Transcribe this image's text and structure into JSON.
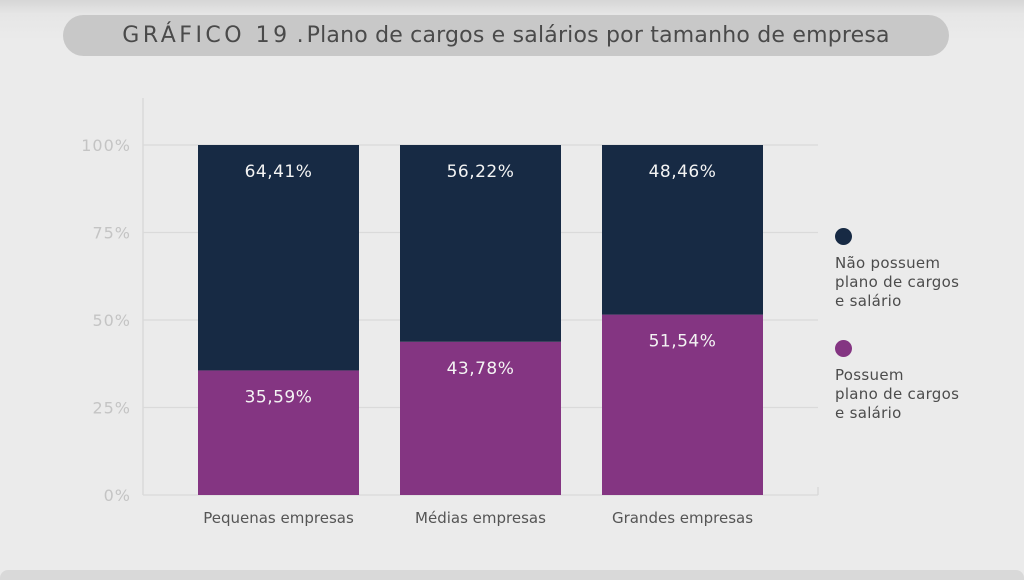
{
  "title": {
    "prefix": "GRÁFICO 19",
    "separator": ".",
    "text": "Plano de cargos e salários por tamanho de empresa"
  },
  "chart_data": {
    "type": "bar",
    "stacked": true,
    "categories": [
      "Pequenas empresas",
      "Médias empresas",
      "Grandes empresas"
    ],
    "series": [
      {
        "name": "Possuem plano de cargos e salário",
        "values": [
          35.59,
          43.78,
          51.54
        ],
        "labels": [
          "35,59%",
          "43,78%",
          "51,54%"
        ],
        "color": "#843582"
      },
      {
        "name": "Não possuem plano de cargos e salário",
        "values": [
          64.41,
          56.22,
          48.46
        ],
        "labels": [
          "64,41%",
          "56,22%",
          "48,46%"
        ],
        "color": "#172a44"
      }
    ],
    "yticks": [
      "0%",
      "25%",
      "50%",
      "75%",
      "100%"
    ],
    "ylim": [
      0,
      100
    ],
    "grid": true,
    "legend_position": "right"
  },
  "legend": [
    {
      "label": "Não possuem\nplano de cargos\ne salário",
      "color": "#172a44"
    },
    {
      "label": "Possuem\nplano de cargos\ne salário",
      "color": "#843582"
    }
  ]
}
